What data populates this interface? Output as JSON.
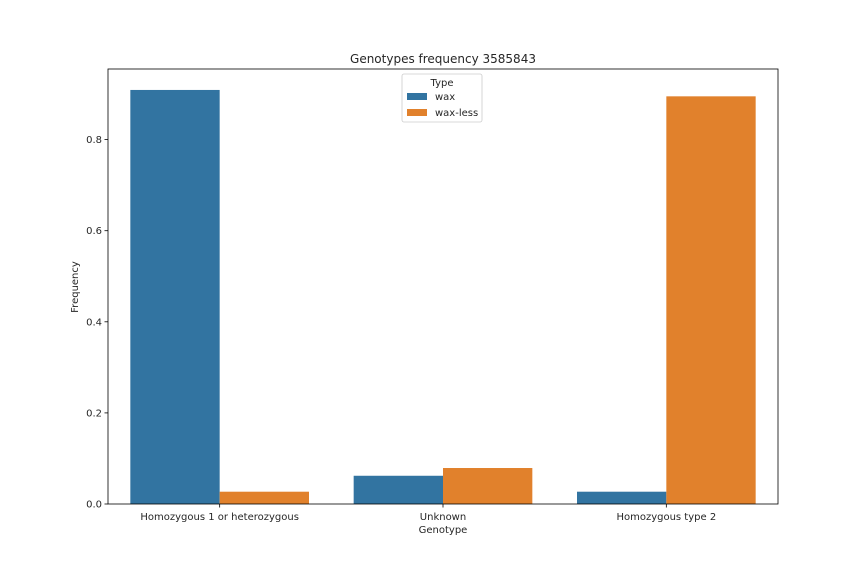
{
  "chart_data": {
    "type": "bar",
    "title": "Genotypes frequency 3585843",
    "xlabel": "Genotype",
    "ylabel": "Frequency",
    "categories": [
      "Homozygous 1 or heterozygous",
      "Unknown",
      "Homozygous type 2"
    ],
    "series": [
      {
        "name": "wax",
        "color": "#3274a1",
        "values": [
          0.909,
          0.062,
          0.027
        ]
      },
      {
        "name": "wax-less",
        "color": "#e1812c",
        "values": [
          0.027,
          0.079,
          0.895
        ]
      }
    ],
    "ylim": [
      0,
      0.955
    ],
    "yticks": [
      "0.0",
      "0.2",
      "0.4",
      "0.6",
      "0.8"
    ],
    "grid": false,
    "legend": {
      "title": "Type",
      "placement": "upper-center"
    }
  }
}
